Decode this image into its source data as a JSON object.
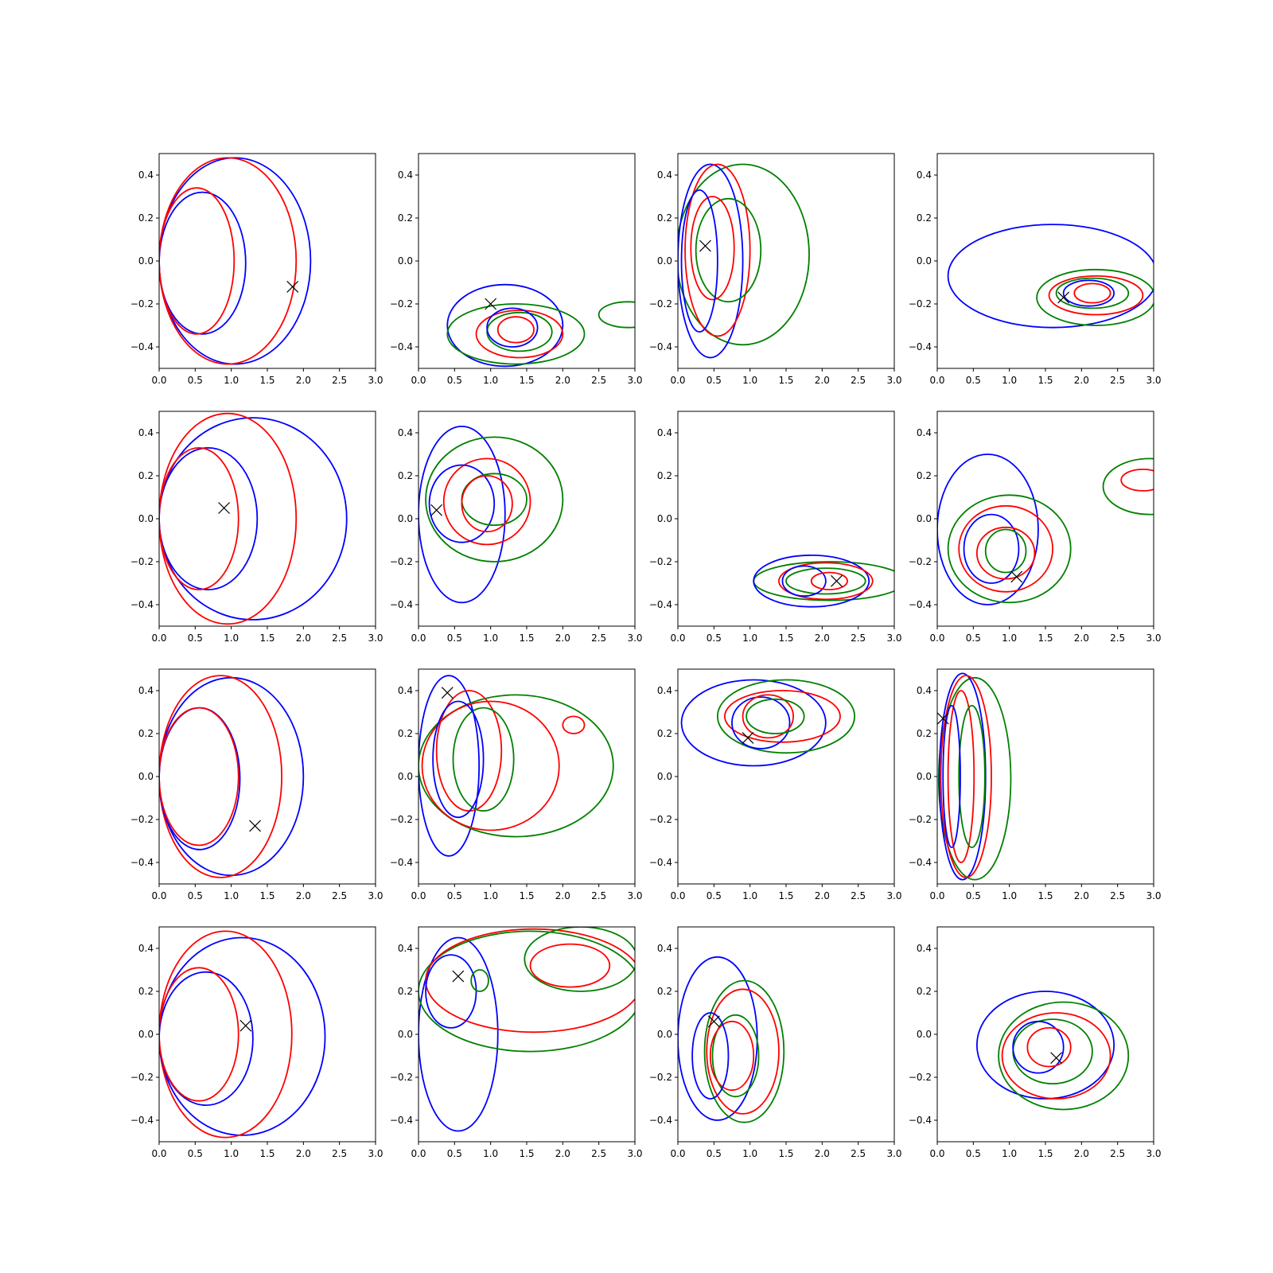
{
  "chart_data": {
    "type": "contour",
    "grid": {
      "rows": 4,
      "cols": 4
    },
    "xlim": [
      0,
      3
    ],
    "ylim": [
      -0.5,
      0.5
    ],
    "xticks": [
      "0.0",
      "0.5",
      "1.0",
      "1.5",
      "2.0",
      "2.5",
      "3.0"
    ],
    "yticks": [
      "−0.4",
      "−0.2",
      "0.0",
      "0.2",
      "0.4"
    ],
    "xtick_values": [
      0,
      0.5,
      1.0,
      1.5,
      2.0,
      2.5,
      3.0
    ],
    "ytick_values": [
      -0.4,
      -0.2,
      0.0,
      0.2,
      0.4
    ],
    "colors": {
      "blue": "#0000ff",
      "red": "#ff0000",
      "green": "#008000",
      "marker": "#000000"
    },
    "marker_symbol": "x",
    "panels": [
      {
        "marker": [
          1.85,
          -0.12
        ],
        "contours": [
          {
            "color": "blue",
            "cx": 1.05,
            "cy": 0.0,
            "rx": 1.05,
            "ry": 0.48,
            "skew": 0.0
          },
          {
            "color": "red",
            "cx": 0.95,
            "cy": 0.0,
            "rx": 0.95,
            "ry": 0.48,
            "skew": 0.0
          },
          {
            "color": "blue",
            "cx": 0.6,
            "cy": -0.01,
            "rx": 0.6,
            "ry": 0.33,
            "skew": 0.0
          },
          {
            "color": "red",
            "cx": 0.52,
            "cy": 0.0,
            "rx": 0.52,
            "ry": 0.34,
            "skew": 0.0
          }
        ]
      },
      {
        "marker": [
          1.0,
          -0.2
        ],
        "contours": [
          {
            "color": "blue",
            "cx": 1.2,
            "cy": -0.3,
            "rx": 0.8,
            "ry": 0.19,
            "skew": 0.0
          },
          {
            "color": "green",
            "cx": 1.35,
            "cy": -0.34,
            "rx": 0.95,
            "ry": 0.14,
            "skew": 0.0
          },
          {
            "color": "red",
            "cx": 1.4,
            "cy": -0.34,
            "rx": 0.6,
            "ry": 0.11,
            "skew": 0.0
          },
          {
            "color": "green",
            "cx": 1.4,
            "cy": -0.33,
            "rx": 0.45,
            "ry": 0.09,
            "skew": 0.0
          },
          {
            "color": "blue",
            "cx": 1.3,
            "cy": -0.31,
            "rx": 0.35,
            "ry": 0.09,
            "skew": 0.0
          },
          {
            "color": "red",
            "cx": 1.35,
            "cy": -0.32,
            "rx": 0.25,
            "ry": 0.06,
            "skew": 0.0
          },
          {
            "color": "green",
            "cx": 2.9,
            "cy": -0.25,
            "rx": 0.4,
            "ry": 0.06,
            "skew": 0.0
          }
        ]
      },
      {
        "marker": [
          0.38,
          0.07
        ],
        "contours": [
          {
            "color": "green",
            "cx": 0.9,
            "cy": 0.03,
            "rx": 0.92,
            "ry": 0.42,
            "skew": 0.0
          },
          {
            "color": "blue",
            "cx": 0.45,
            "cy": 0.0,
            "rx": 0.45,
            "ry": 0.45,
            "skew": 0.0
          },
          {
            "color": "red",
            "cx": 0.55,
            "cy": 0.05,
            "rx": 0.45,
            "ry": 0.4,
            "skew": 0.0
          },
          {
            "color": "green",
            "cx": 0.7,
            "cy": 0.05,
            "rx": 0.45,
            "ry": 0.24,
            "skew": 0.0
          },
          {
            "color": "red",
            "cx": 0.48,
            "cy": 0.06,
            "rx": 0.3,
            "ry": 0.24,
            "skew": 0.0
          },
          {
            "color": "blue",
            "cx": 0.3,
            "cy": 0.0,
            "rx": 0.25,
            "ry": 0.33,
            "skew": 0.0
          }
        ]
      },
      {
        "marker": [
          1.75,
          -0.17
        ],
        "contours": [
          {
            "color": "blue",
            "cx": 1.6,
            "cy": -0.07,
            "rx": 1.45,
            "ry": 0.24,
            "skew": 0.0
          },
          {
            "color": "green",
            "cx": 2.2,
            "cy": -0.17,
            "rx": 0.82,
            "ry": 0.13,
            "skew": 0.0
          },
          {
            "color": "red",
            "cx": 2.2,
            "cy": -0.16,
            "rx": 0.65,
            "ry": 0.09,
            "skew": 0.0
          },
          {
            "color": "green",
            "cx": 2.15,
            "cy": -0.15,
            "rx": 0.5,
            "ry": 0.07,
            "skew": 0.0
          },
          {
            "color": "blue",
            "cx": 2.1,
            "cy": -0.15,
            "rx": 0.35,
            "ry": 0.06,
            "skew": 0.0
          },
          {
            "color": "red",
            "cx": 2.15,
            "cy": -0.15,
            "rx": 0.25,
            "ry": 0.045,
            "skew": 0.0
          }
        ]
      },
      {
        "marker": [
          0.9,
          0.05
        ],
        "contours": [
          {
            "color": "blue",
            "cx": 1.3,
            "cy": 0.0,
            "rx": 1.3,
            "ry": 0.47,
            "skew": 0.0
          },
          {
            "color": "red",
            "cx": 0.95,
            "cy": 0.0,
            "rx": 0.95,
            "ry": 0.49,
            "skew": 0.0
          },
          {
            "color": "blue",
            "cx": 0.68,
            "cy": 0.0,
            "rx": 0.68,
            "ry": 0.33,
            "skew": 0.0
          },
          {
            "color": "red",
            "cx": 0.55,
            "cy": 0.0,
            "rx": 0.55,
            "ry": 0.33,
            "skew": 0.0
          }
        ]
      },
      {
        "marker": [
          0.25,
          0.04
        ],
        "contours": [
          {
            "color": "blue",
            "cx": 0.6,
            "cy": 0.02,
            "rx": 0.6,
            "ry": 0.41,
            "skew": 0.0
          },
          {
            "color": "green",
            "cx": 1.05,
            "cy": 0.09,
            "rx": 0.95,
            "ry": 0.29,
            "skew": 0.0
          },
          {
            "color": "red",
            "cx": 0.95,
            "cy": 0.08,
            "rx": 0.6,
            "ry": 0.2,
            "skew": 0.0
          },
          {
            "color": "blue",
            "cx": 0.6,
            "cy": 0.07,
            "rx": 0.45,
            "ry": 0.18,
            "skew": 0.0
          },
          {
            "color": "green",
            "cx": 1.05,
            "cy": 0.09,
            "rx": 0.45,
            "ry": 0.12,
            "skew": 0.0
          },
          {
            "color": "red",
            "cx": 0.95,
            "cy": 0.07,
            "rx": 0.35,
            "ry": 0.13,
            "skew": 0.0
          }
        ]
      },
      {
        "marker": [
          2.2,
          -0.29
        ],
        "contours": [
          {
            "color": "green",
            "cx": 2.1,
            "cy": -0.29,
            "rx": 1.05,
            "ry": 0.09,
            "skew": 0.0
          },
          {
            "color": "blue",
            "cx": 1.85,
            "cy": -0.29,
            "rx": 0.8,
            "ry": 0.12,
            "skew": 0.0
          },
          {
            "color": "red",
            "cx": 2.05,
            "cy": -0.29,
            "rx": 0.65,
            "ry": 0.085,
            "skew": 0.0
          },
          {
            "color": "green",
            "cx": 2.05,
            "cy": -0.29,
            "rx": 0.55,
            "ry": 0.06,
            "skew": 0.0
          },
          {
            "color": "blue",
            "cx": 1.75,
            "cy": -0.29,
            "rx": 0.3,
            "ry": 0.07,
            "skew": 0.0
          },
          {
            "color": "red",
            "cx": 2.1,
            "cy": -0.29,
            "rx": 0.25,
            "ry": 0.04,
            "skew": 0.0
          }
        ]
      },
      {
        "marker": [
          1.1,
          -0.27
        ],
        "contours": [
          {
            "color": "blue",
            "cx": 0.7,
            "cy": -0.05,
            "rx": 0.7,
            "ry": 0.35,
            "skew": 0.0
          },
          {
            "color": "green",
            "cx": 1.0,
            "cy": -0.14,
            "rx": 0.85,
            "ry": 0.25,
            "skew": 0.0
          },
          {
            "color": "red",
            "cx": 0.95,
            "cy": -0.14,
            "rx": 0.65,
            "ry": 0.2,
            "skew": 0.0
          },
          {
            "color": "blue",
            "cx": 0.75,
            "cy": -0.14,
            "rx": 0.38,
            "ry": 0.16,
            "skew": 0.0
          },
          {
            "color": "red",
            "cx": 0.95,
            "cy": -0.16,
            "rx": 0.4,
            "ry": 0.12,
            "skew": 0.0
          },
          {
            "color": "green",
            "cx": 0.95,
            "cy": -0.15,
            "rx": 0.28,
            "ry": 0.1,
            "skew": 0.0
          },
          {
            "color": "green",
            "cx": 2.95,
            "cy": 0.15,
            "rx": 0.65,
            "ry": 0.13,
            "skew": 0.0
          },
          {
            "color": "red",
            "cx": 2.85,
            "cy": 0.18,
            "rx": 0.3,
            "ry": 0.05,
            "skew": 0.0
          }
        ]
      },
      {
        "marker": [
          1.33,
          -0.23
        ],
        "contours": [
          {
            "color": "blue",
            "cx": 1.0,
            "cy": 0.0,
            "rx": 1.0,
            "ry": 0.46,
            "skew": 0.0
          },
          {
            "color": "red",
            "cx": 0.85,
            "cy": 0.0,
            "rx": 0.85,
            "ry": 0.47,
            "skew": 0.0
          },
          {
            "color": "blue",
            "cx": 0.56,
            "cy": -0.01,
            "rx": 0.56,
            "ry": 0.33,
            "skew": 0.0
          },
          {
            "color": "red",
            "cx": 0.55,
            "cy": 0.0,
            "rx": 0.55,
            "ry": 0.32,
            "skew": 0.0
          }
        ]
      },
      {
        "marker": [
          0.4,
          0.39
        ],
        "contours": [
          {
            "color": "blue",
            "cx": 0.42,
            "cy": 0.05,
            "rx": 0.42,
            "ry": 0.42,
            "skew": 0.0
          },
          {
            "color": "green",
            "cx": 1.35,
            "cy": 0.05,
            "rx": 1.35,
            "ry": 0.33,
            "skew": 0.0
          },
          {
            "color": "red",
            "cx": 1.0,
            "cy": 0.05,
            "rx": 0.95,
            "ry": 0.3,
            "skew": 0.0
          },
          {
            "color": "red",
            "cx": 0.7,
            "cy": 0.12,
            "rx": 0.45,
            "ry": 0.28,
            "skew": 0.0
          },
          {
            "color": "green",
            "cx": 0.9,
            "cy": 0.08,
            "rx": 0.42,
            "ry": 0.24,
            "skew": 0.0
          },
          {
            "color": "blue",
            "cx": 0.55,
            "cy": 0.08,
            "rx": 0.35,
            "ry": 0.27,
            "skew": 0.0
          },
          {
            "color": "red",
            "cx": 2.15,
            "cy": 0.24,
            "rx": 0.15,
            "ry": 0.04,
            "skew": 0.0
          }
        ]
      },
      {
        "marker": [
          0.97,
          0.18
        ],
        "contours": [
          {
            "color": "blue",
            "cx": 1.05,
            "cy": 0.25,
            "rx": 1.0,
            "ry": 0.2,
            "skew": 0.0
          },
          {
            "color": "green",
            "cx": 1.5,
            "cy": 0.28,
            "rx": 0.95,
            "ry": 0.17,
            "skew": 0.0
          },
          {
            "color": "red",
            "cx": 1.45,
            "cy": 0.28,
            "rx": 0.8,
            "ry": 0.12,
            "skew": 0.0
          },
          {
            "color": "blue",
            "cx": 1.15,
            "cy": 0.25,
            "rx": 0.4,
            "ry": 0.12,
            "skew": 0.0
          },
          {
            "color": "red",
            "cx": 1.25,
            "cy": 0.28,
            "rx": 0.35,
            "ry": 0.1,
            "skew": 0.0
          },
          {
            "color": "green",
            "cx": 1.35,
            "cy": 0.28,
            "rx": 0.4,
            "ry": 0.08,
            "skew": 0.0
          }
        ]
      },
      {
        "marker": [
          0.08,
          0.27
        ],
        "contours": [
          {
            "color": "green",
            "cx": 0.52,
            "cy": -0.01,
            "rx": 0.5,
            "ry": 0.47,
            "skew": 0.0
          },
          {
            "color": "blue",
            "cx": 0.35,
            "cy": 0.0,
            "rx": 0.32,
            "ry": 0.48,
            "skew": 0.0
          },
          {
            "color": "red",
            "cx": 0.4,
            "cy": 0.0,
            "rx": 0.35,
            "ry": 0.47,
            "skew": 0.0
          },
          {
            "color": "red",
            "cx": 0.33,
            "cy": 0.0,
            "rx": 0.18,
            "ry": 0.4,
            "skew": 0.0
          },
          {
            "color": "green",
            "cx": 0.48,
            "cy": 0.0,
            "rx": 0.18,
            "ry": 0.33,
            "skew": 0.0
          },
          {
            "color": "blue",
            "cx": 0.2,
            "cy": 0.0,
            "rx": 0.12,
            "ry": 0.33,
            "skew": 0.0
          }
        ]
      },
      {
        "marker": [
          1.2,
          0.04
        ],
        "contours": [
          {
            "color": "blue",
            "cx": 1.15,
            "cy": -0.01,
            "rx": 1.15,
            "ry": 0.46,
            "skew": 0.0
          },
          {
            "color": "red",
            "cx": 0.92,
            "cy": 0.0,
            "rx": 0.92,
            "ry": 0.48,
            "skew": 0.0
          },
          {
            "color": "blue",
            "cx": 0.65,
            "cy": -0.02,
            "rx": 0.65,
            "ry": 0.31,
            "skew": 0.0
          },
          {
            "color": "red",
            "cx": 0.55,
            "cy": 0.0,
            "rx": 0.55,
            "ry": 0.31,
            "skew": 0.0
          }
        ]
      },
      {
        "marker": [
          0.55,
          0.27
        ],
        "contours": [
          {
            "color": "blue",
            "cx": 0.55,
            "cy": 0.0,
            "rx": 0.55,
            "ry": 0.45,
            "skew": 0.0
          },
          {
            "color": "green",
            "cx": 1.55,
            "cy": 0.2,
            "rx": 1.55,
            "ry": 0.28,
            "skew": 0.0
          },
          {
            "color": "red",
            "cx": 1.6,
            "cy": 0.25,
            "rx": 1.5,
            "ry": 0.24,
            "skew": 0.0
          },
          {
            "color": "green",
            "cx": 2.25,
            "cy": 0.35,
            "rx": 0.78,
            "ry": 0.15,
            "skew": 0.0
          },
          {
            "color": "red",
            "cx": 2.1,
            "cy": 0.32,
            "rx": 0.55,
            "ry": 0.1,
            "skew": 0.0
          },
          {
            "color": "blue",
            "cx": 0.45,
            "cy": 0.2,
            "rx": 0.35,
            "ry": 0.17,
            "skew": 0.0
          },
          {
            "color": "green",
            "cx": 0.85,
            "cy": 0.25,
            "rx": 0.12,
            "ry": 0.05,
            "skew": 0.0
          }
        ]
      },
      {
        "marker": [
          0.5,
          0.06
        ],
        "contours": [
          {
            "color": "blue",
            "cx": 0.55,
            "cy": -0.02,
            "rx": 0.55,
            "ry": 0.38,
            "skew": 0.0
          },
          {
            "color": "green",
            "cx": 0.92,
            "cy": -0.08,
            "rx": 0.55,
            "ry": 0.33,
            "skew": 0.0
          },
          {
            "color": "red",
            "cx": 0.9,
            "cy": -0.08,
            "rx": 0.5,
            "ry": 0.29,
            "skew": 0.0
          },
          {
            "color": "green",
            "cx": 0.8,
            "cy": -0.1,
            "rx": 0.32,
            "ry": 0.19,
            "skew": 0.0
          },
          {
            "color": "red",
            "cx": 0.75,
            "cy": -0.1,
            "rx": 0.3,
            "ry": 0.16,
            "skew": 0.0
          },
          {
            "color": "blue",
            "cx": 0.45,
            "cy": -0.1,
            "rx": 0.25,
            "ry": 0.2,
            "skew": 0.0
          }
        ]
      },
      {
        "marker": [
          1.65,
          -0.11
        ],
        "contours": [
          {
            "color": "blue",
            "cx": 1.5,
            "cy": -0.05,
            "rx": 0.95,
            "ry": 0.25,
            "skew": 0.0
          },
          {
            "color": "green",
            "cx": 1.75,
            "cy": -0.1,
            "rx": 0.9,
            "ry": 0.25,
            "skew": 0.0
          },
          {
            "color": "red",
            "cx": 1.65,
            "cy": -0.1,
            "rx": 0.75,
            "ry": 0.2,
            "skew": 0.0
          },
          {
            "color": "green",
            "cx": 1.6,
            "cy": -0.08,
            "rx": 0.55,
            "ry": 0.15,
            "skew": 0.0
          },
          {
            "color": "blue",
            "cx": 1.4,
            "cy": -0.06,
            "rx": 0.35,
            "ry": 0.12,
            "skew": 0.0
          },
          {
            "color": "red",
            "cx": 1.55,
            "cy": -0.06,
            "rx": 0.3,
            "ry": 0.09,
            "skew": 0.0
          }
        ]
      }
    ]
  }
}
